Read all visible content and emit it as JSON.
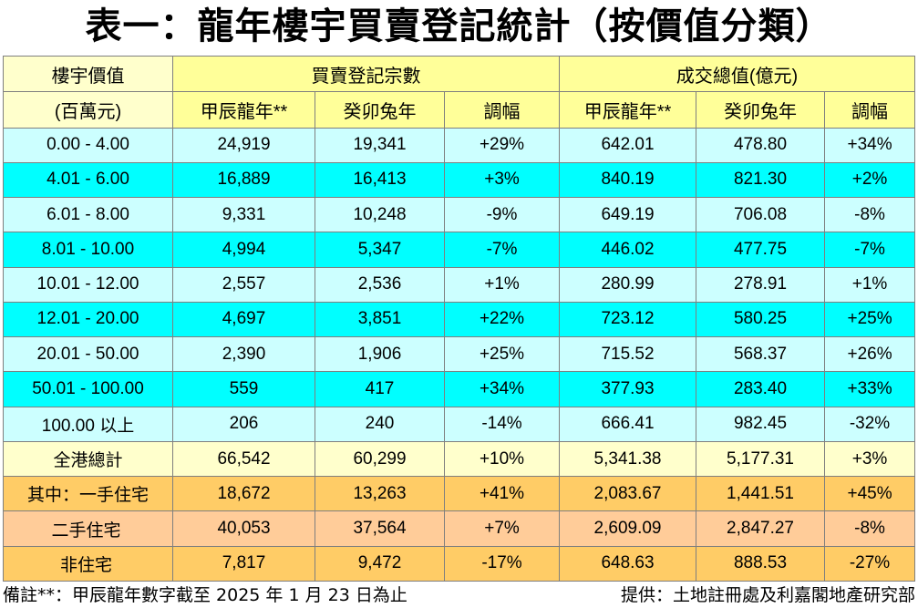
{
  "title": "表一：龍年樓宇買賣登記統計（按價值分類）",
  "header": {
    "col0_line1": "樓宇價值",
    "col0_line2": "(百萬元)",
    "group1": "買賣登記宗數",
    "group2": "成交總值(億元)",
    "sub_dragon": "甲辰龍年**",
    "sub_rabbit": "癸卯兔年",
    "sub_change": "調幅"
  },
  "rows": [
    {
      "label": "0.00 - 4.00",
      "c1": "24,919",
      "c2": "19,341",
      "c3": "+29%",
      "v1": "642.01",
      "v2": "478.80",
      "v3": "+34%"
    },
    {
      "label": "4.01 - 6.00",
      "c1": "16,889",
      "c2": "16,413",
      "c3": "+3%",
      "v1": "840.19",
      "v2": "821.30",
      "v3": "+2%"
    },
    {
      "label": "6.01 - 8.00",
      "c1": "9,331",
      "c2": "10,248",
      "c3": "-9%",
      "v1": "649.19",
      "v2": "706.08",
      "v3": "-8%"
    },
    {
      "label": "8.01 - 10.00",
      "c1": "4,994",
      "c2": "5,347",
      "c3": "-7%",
      "v1": "446.02",
      "v2": "477.75",
      "v3": "-7%"
    },
    {
      "label": "10.01 - 12.00",
      "c1": "2,557",
      "c2": "2,536",
      "c3": "+1%",
      "v1": "280.99",
      "v2": "278.91",
      "v3": "+1%"
    },
    {
      "label": "12.01 - 20.00",
      "c1": "4,697",
      "c2": "3,851",
      "c3": "+22%",
      "v1": "723.12",
      "v2": "580.25",
      "v3": "+25%"
    },
    {
      "label": "20.01 - 50.00",
      "c1": "2,390",
      "c2": "1,906",
      "c3": "+25%",
      "v1": "715.52",
      "v2": "568.37",
      "v3": "+26%"
    },
    {
      "label": "50.01 - 100.00",
      "c1": "559",
      "c2": "417",
      "c3": "+34%",
      "v1": "377.93",
      "v2": "283.40",
      "v3": "+33%"
    },
    {
      "label": "100.00 以上",
      "c1": "206",
      "c2": "240",
      "c3": "-14%",
      "v1": "666.41",
      "v2": "982.45",
      "v3": "-32%"
    }
  ],
  "total": {
    "label": "全港總計",
    "c1": "66,542",
    "c2": "60,299",
    "c3": "+10%",
    "v1": "5,341.38",
    "v2": "5,177.31",
    "v3": "+3%"
  },
  "firsthand": {
    "label": "其中：一手住宅",
    "c1": "18,672",
    "c2": "13,263",
    "c3": "+41%",
    "v1": "2,083.67",
    "v2": "1,441.51",
    "v3": "+45%"
  },
  "secondhand": {
    "label": "二手住宅",
    "c1": "40,053",
    "c2": "37,564",
    "c3": "+7%",
    "v1": "2,609.09",
    "v2": "2,847.27",
    "v3": "-8%"
  },
  "nonresidential": {
    "label": "非住宅",
    "c1": "7,817",
    "c2": "9,472",
    "c3": "-17%",
    "v1": "648.63",
    "v2": "888.53",
    "v3": "-27%"
  },
  "footer": {
    "note": "備註**：甲辰龍年數字截至 2025 年 1 月 23 日為止",
    "source": "提供：土地註冊處及利嘉閣地產研究部"
  }
}
